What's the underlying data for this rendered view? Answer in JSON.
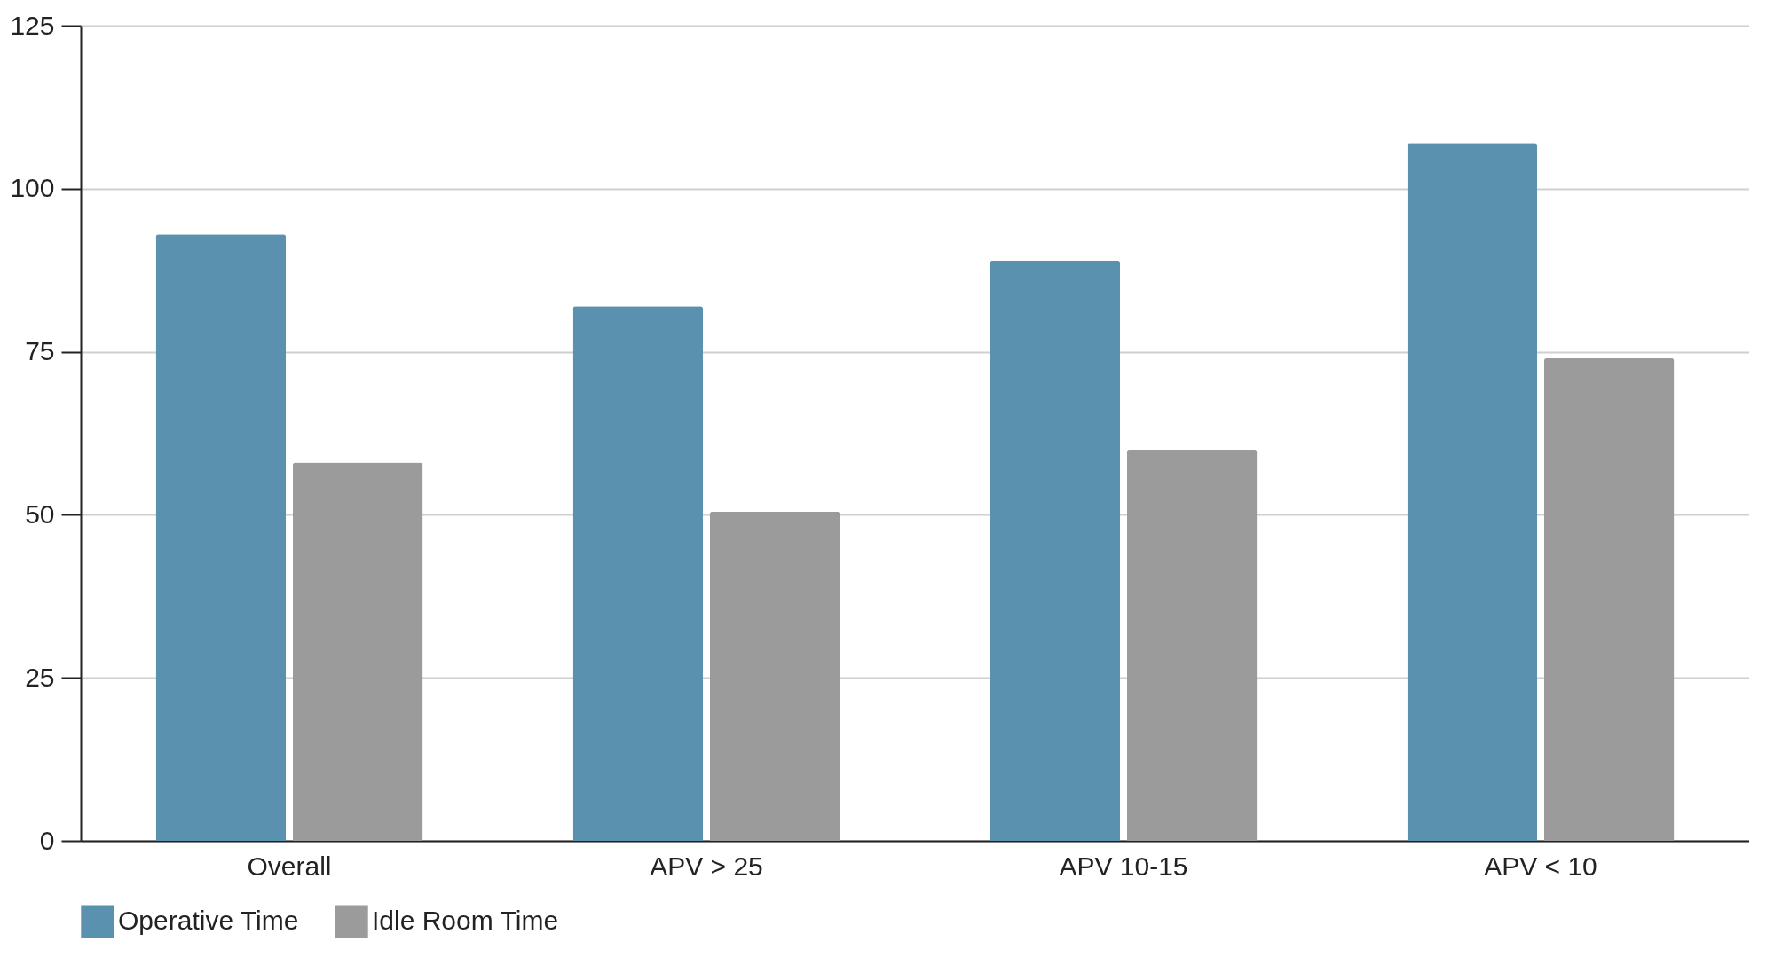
{
  "chart_data": {
    "type": "bar",
    "categories": [
      "Overall",
      "APV > 25",
      "APV 10-15",
      "APV < 10"
    ],
    "series": [
      {
        "name": "Operative Time",
        "color": "#5a91af",
        "values": [
          93,
          82,
          89,
          107
        ]
      },
      {
        "name": "Idle Room Time",
        "color": "#9b9b9b",
        "values": [
          58,
          50.5,
          60,
          74
        ]
      }
    ],
    "ylim": [
      0,
      125
    ],
    "yticks": [
      0,
      25,
      50,
      75,
      100,
      125
    ],
    "grid": "y",
    "legend": "bottom"
  }
}
